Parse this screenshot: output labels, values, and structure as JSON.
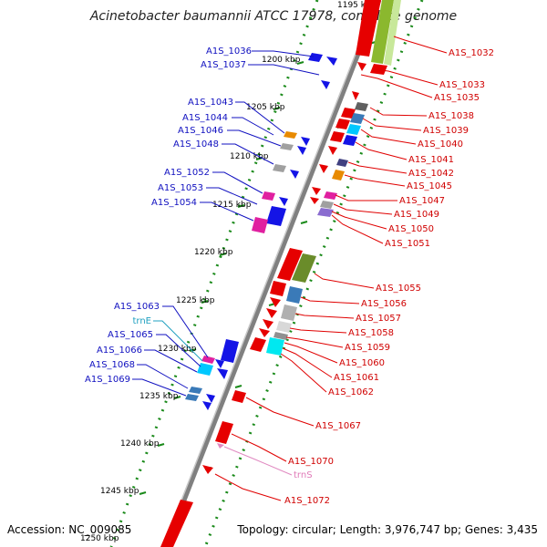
{
  "header": {
    "title": "Acinetobacter baumannii ATCC 17978, complete genome"
  },
  "footer": {
    "accession": "Accession: NC_009085",
    "summary": "Topology: circular; Length: 3,976,747 bp; Genes: 3,435"
  },
  "colors": {
    "reverse_strand": "#1414e6",
    "forward_strand": "#e60000",
    "rna": "#00b4c8",
    "trna_label": "#20a0c0",
    "rrna_label": "#e07ab8",
    "backbone": "#808080",
    "scale_dots": "#1a8a1a"
  },
  "scale": {
    "ticks": [
      "1200 kbp",
      "1205 kbp",
      "1210 kbp",
      "1215 kbp",
      "1220 kbp",
      "1225 kbp",
      "1230 kbp",
      "1235 kbp",
      "1240 kbp",
      "1245 kbp",
      "1250 kbp"
    ]
  },
  "left_labels": [
    "A1S_1036",
    "A1S_1037",
    "A1S_1043",
    "A1S_1044",
    "A1S_1046",
    "A1S_1048",
    "A1S_1052",
    "A1S_1053",
    "A1S_1054",
    "A1S_1063",
    "trnE",
    "A1S_1065",
    "A1S_1066",
    "A1S_1068",
    "A1S_1069"
  ],
  "right_labels": [
    "A1S_1032",
    "A1S_1033",
    "A1S_1035",
    "A1S_1038",
    "A1S_1039",
    "A1S_1040",
    "A1S_1041",
    "A1S_1042",
    "A1S_1045",
    "A1S_1047",
    "A1S_1049",
    "A1S_1050",
    "A1S_1051",
    "A1S_1055",
    "A1S_1056",
    "A1S_1057",
    "A1S_1058",
    "A1S_1059",
    "A1S_1060",
    "A1S_1061",
    "A1S_1062",
    "A1S_1067",
    "A1S_1070",
    "trnS",
    "A1S_1072"
  ]
}
